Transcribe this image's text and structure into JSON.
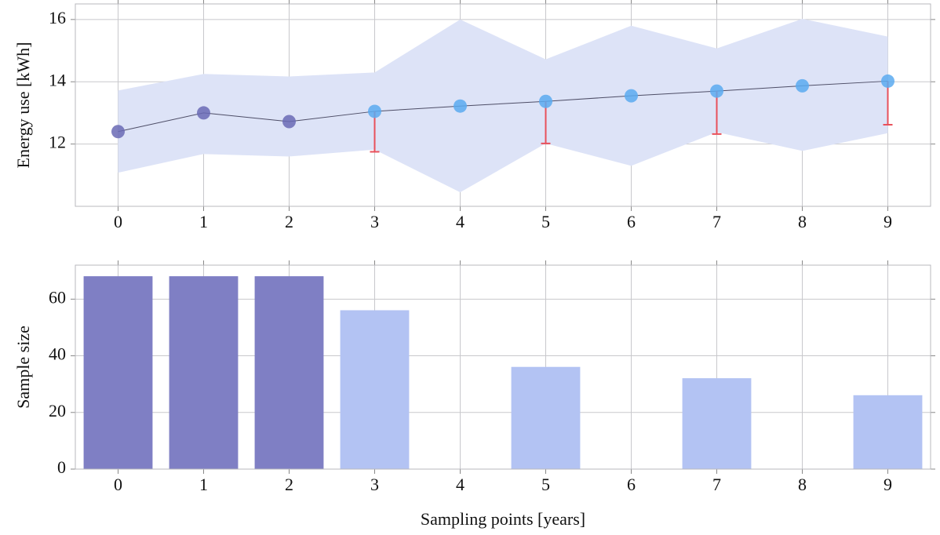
{
  "chart_data": [
    {
      "type": "line",
      "ylabel": "Energy use [kWh]",
      "x": [
        0,
        1,
        2,
        3,
        4,
        5,
        6,
        7,
        8,
        9
      ],
      "values": [
        12.4,
        13.0,
        12.72,
        13.05,
        13.22,
        13.37,
        13.55,
        13.7,
        13.87,
        14.02
      ],
      "colors": [
        "#6a6ab5",
        "#6a6ab5",
        "#6a6ab5",
        "#5aaaf0",
        "#5aaaf0",
        "#5aaaf0",
        "#5aaaf0",
        "#5aaaf0",
        "#5aaaf0",
        "#5aaaf0"
      ],
      "line_color": "#4d4d66",
      "band_upper": [
        13.72,
        14.25,
        14.17,
        14.3,
        16.0,
        14.72,
        15.8,
        15.07,
        16.02,
        15.45
      ],
      "band_lower": [
        11.08,
        11.68,
        11.6,
        11.82,
        10.45,
        12.02,
        11.3,
        12.38,
        11.78,
        12.35
      ],
      "band_color": "#dde3f7",
      "errors": [
        null,
        null,
        null,
        1.3,
        null,
        1.35,
        null,
        1.38,
        null,
        1.4
      ],
      "error_color": "#e8505b",
      "xlim": [
        -0.5,
        9.5
      ],
      "xticks": [
        0,
        1,
        2,
        3,
        4,
        5,
        6,
        7,
        8,
        9
      ],
      "ylim": [
        10,
        16.5
      ],
      "yticks": [
        12,
        14,
        16
      ],
      "grid": true
    },
    {
      "type": "bar",
      "xlabel": "Sampling points [years]",
      "ylabel": "Sample size",
      "x": [
        0,
        1,
        2,
        3,
        4,
        5,
        6,
        7,
        8,
        9
      ],
      "values": [
        68,
        68,
        68,
        56,
        0,
        36,
        0,
        32,
        0,
        26
      ],
      "colors": [
        "#7f7fc4",
        "#7f7fc4",
        "#7f7fc4",
        "#b3c3f3",
        "#b3c3f3",
        "#b3c3f3",
        "#b3c3f3",
        "#b3c3f3",
        "#b3c3f3",
        "#b3c3f3"
      ],
      "xlim": [
        -0.5,
        9.5
      ],
      "xticks": [
        0,
        1,
        2,
        3,
        4,
        5,
        6,
        7,
        8,
        9
      ],
      "ylim": [
        0,
        72
      ],
      "yticks": [
        0,
        20,
        40,
        60
      ],
      "grid": true
    }
  ]
}
